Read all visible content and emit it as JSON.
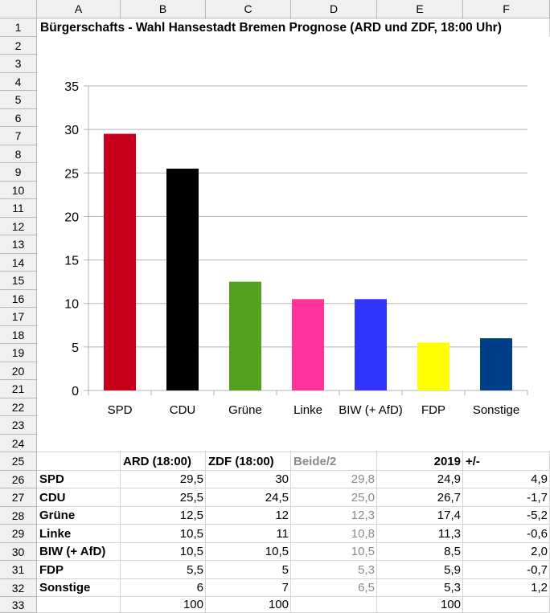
{
  "columns": [
    "A",
    "B",
    "C",
    "D",
    "E",
    "F"
  ],
  "rows": [
    "1",
    "2",
    "3",
    "4",
    "5",
    "6",
    "7",
    "8",
    "9",
    "10",
    "11",
    "12",
    "13",
    "14",
    "15",
    "16",
    "17",
    "18",
    "19",
    "20",
    "21",
    "22",
    "23",
    "24",
    "25",
    "26",
    "27",
    "28",
    "29",
    "30",
    "31",
    "32",
    "33"
  ],
  "title": "Bürgerschafts - Wahl Hansestadt Bremen Prognose (ARD und ZDF, 18:00 Uhr)",
  "chart_data": {
    "type": "bar",
    "categories": [
      "SPD",
      "CDU",
      "Grüne",
      "Linke",
      "BIW (+ AfD)",
      "FDP",
      "Sonstige"
    ],
    "values": [
      29.5,
      25.5,
      12.5,
      10.5,
      10.5,
      5.5,
      6
    ],
    "colors": [
      "#c8001e",
      "#000000",
      "#56a020",
      "#ff3399",
      "#3333ff",
      "#ffff00",
      "#003f87"
    ],
    "ylim": [
      0,
      35
    ],
    "yticks": [
      "0",
      "5",
      "10",
      "15",
      "20",
      "25",
      "30",
      "35"
    ],
    "grid": true,
    "title": "",
    "xlabel": "",
    "ylabel": ""
  },
  "table": {
    "headers": [
      "",
      "ARD (18:00)",
      "ZDF (18:00)",
      "Beide/2",
      "2019",
      "+/-"
    ],
    "rows": [
      [
        "SPD",
        "29,5",
        "30",
        "29,8",
        "24,9",
        "4,9"
      ],
      [
        "CDU",
        "25,5",
        "24,5",
        "25,0",
        "26,7",
        "-1,7"
      ],
      [
        "Grüne",
        "12,5",
        "12",
        "12,3",
        "17,4",
        "-5,2"
      ],
      [
        "Linke",
        "10,5",
        "11",
        "10,8",
        "11,3",
        "-0,6"
      ],
      [
        "BIW (+ AfD)",
        "10,5",
        "10,5",
        "10,5",
        "8,5",
        "2,0"
      ],
      [
        "FDP",
        "5,5",
        "5",
        "5,3",
        "5,9",
        "-0,7"
      ],
      [
        "Sonstige",
        "6",
        "7",
        "6,5",
        "5,3",
        "1,2"
      ]
    ],
    "totals": [
      "",
      "100",
      "100",
      "",
      "100",
      ""
    ]
  }
}
